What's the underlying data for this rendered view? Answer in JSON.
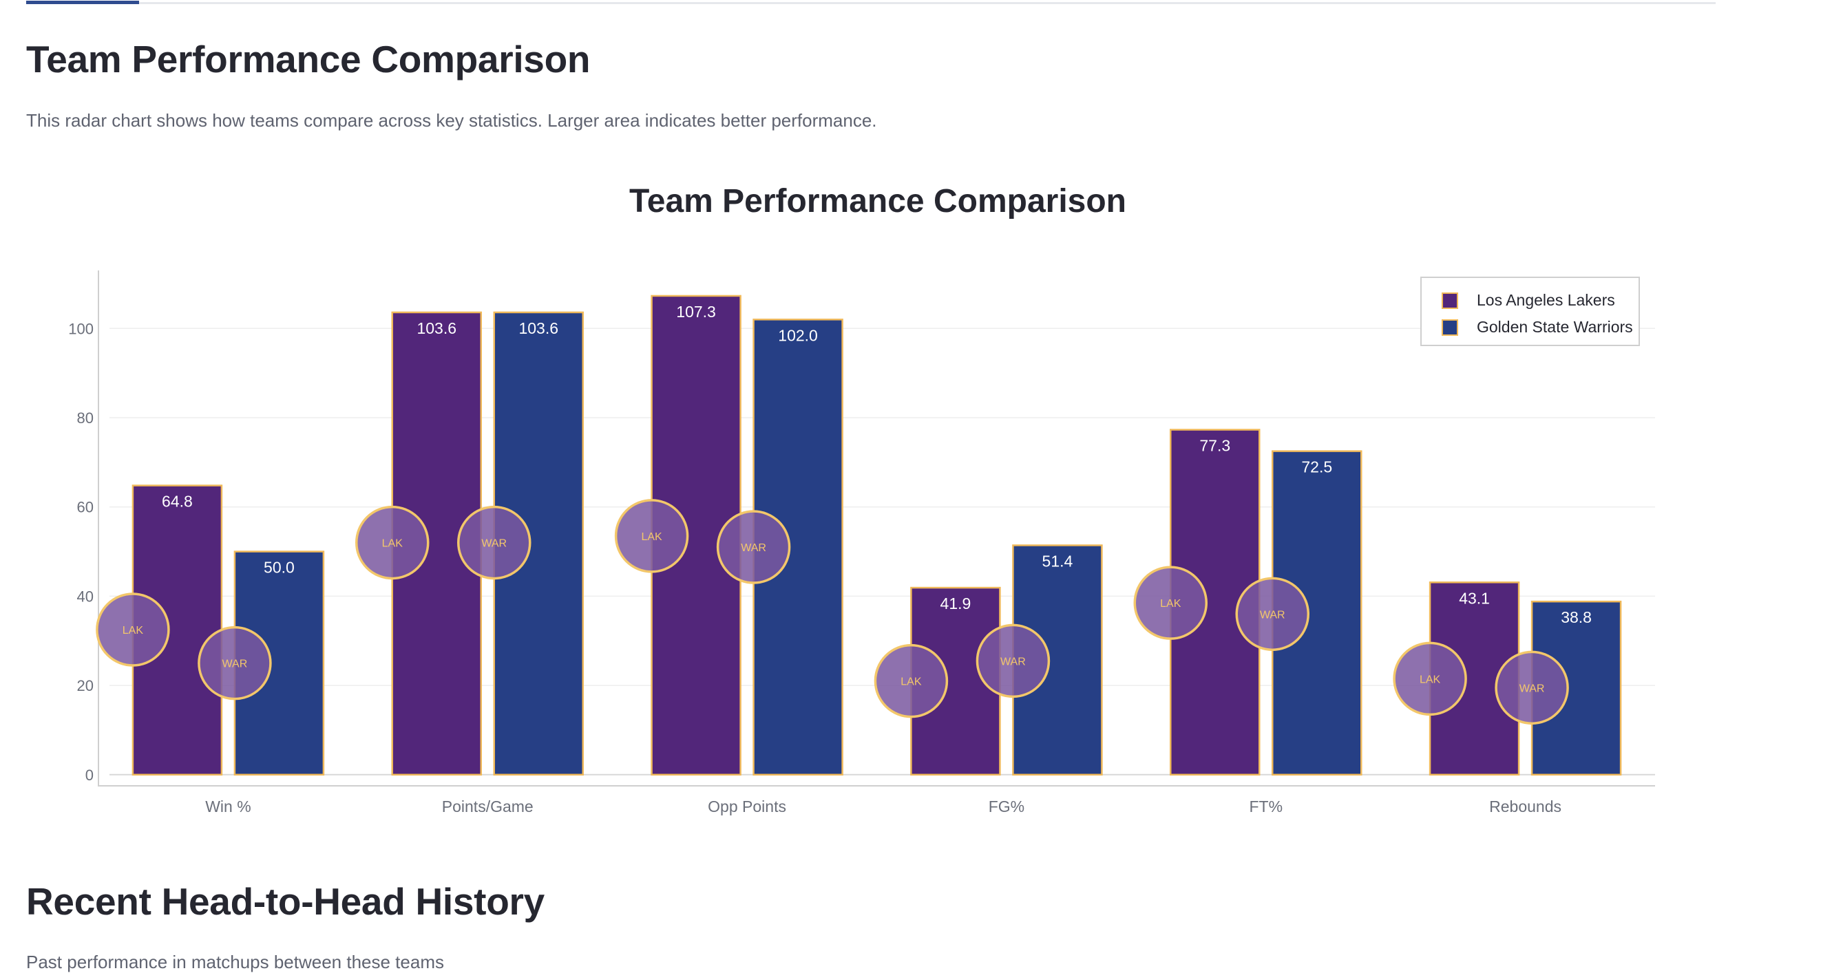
{
  "tabs": [
    {
      "label": "",
      "active": true
    }
  ],
  "section1": {
    "title": "Team Performance Comparison",
    "description": "This radar chart shows how teams compare across key statistics. Larger area indicates better performance."
  },
  "section2": {
    "title": "Recent Head-to-Head History",
    "description": "Past performance in matchups between these teams"
  },
  "colors": {
    "lakers": "#52267a",
    "warriors": "#263f85",
    "bar_outline": "#f0b95a",
    "badge_fill": "#7a58a0",
    "badge_text": "#f3c76a",
    "axis_text": "#6b6f7a",
    "grid": "#eeeeee"
  },
  "chart_data": {
    "type": "bar",
    "title": "Team Performance Comparison",
    "categories": [
      "Win %",
      "Points/Game",
      "Opp Points",
      "FG%",
      "FT%",
      "Rebounds"
    ],
    "series": [
      {
        "name": "Los Angeles Lakers",
        "abbr": "LAK",
        "values": [
          64.8,
          103.6,
          107.3,
          41.9,
          77.3,
          43.1
        ]
      },
      {
        "name": "Golden State Warriors",
        "abbr": "WAR",
        "values": [
          50.0,
          103.6,
          102.0,
          51.4,
          72.5,
          38.8
        ]
      }
    ],
    "badges": [
      {
        "series": 0,
        "values": [
          32.5,
          52.0,
          53.5,
          21.0,
          38.5,
          21.5
        ]
      },
      {
        "series": 1,
        "values": [
          25.0,
          52.0,
          51.0,
          25.5,
          36.0,
          19.5
        ]
      }
    ],
    "yticks": [
      0,
      20,
      40,
      60,
      80,
      100
    ],
    "ylim": [
      -2.5,
      113
    ],
    "xlabel": "",
    "ylabel": "",
    "grid": true,
    "legend_position": "top-right",
    "data_labels": true
  }
}
